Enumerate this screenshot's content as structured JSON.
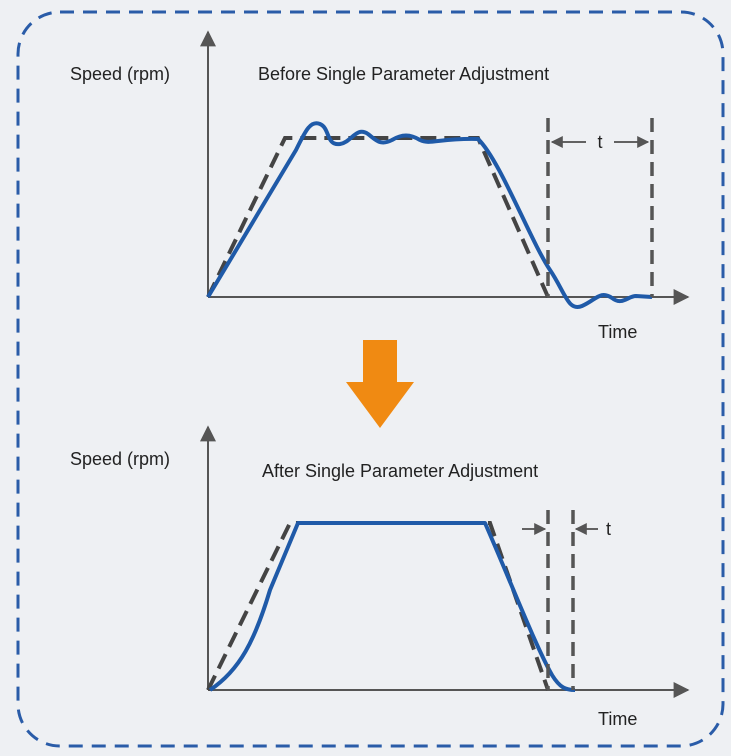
{
  "diagrams": [
    {
      "y_label": "Speed (rpm)",
      "title": "Before Single Parameter Adjustment",
      "interval_label": "t",
      "x_label": "Time"
    },
    {
      "y_label": "Speed (rpm)",
      "title": "After Single Parameter Adjustment",
      "interval_label": "t",
      "x_label": "Time"
    }
  ]
}
